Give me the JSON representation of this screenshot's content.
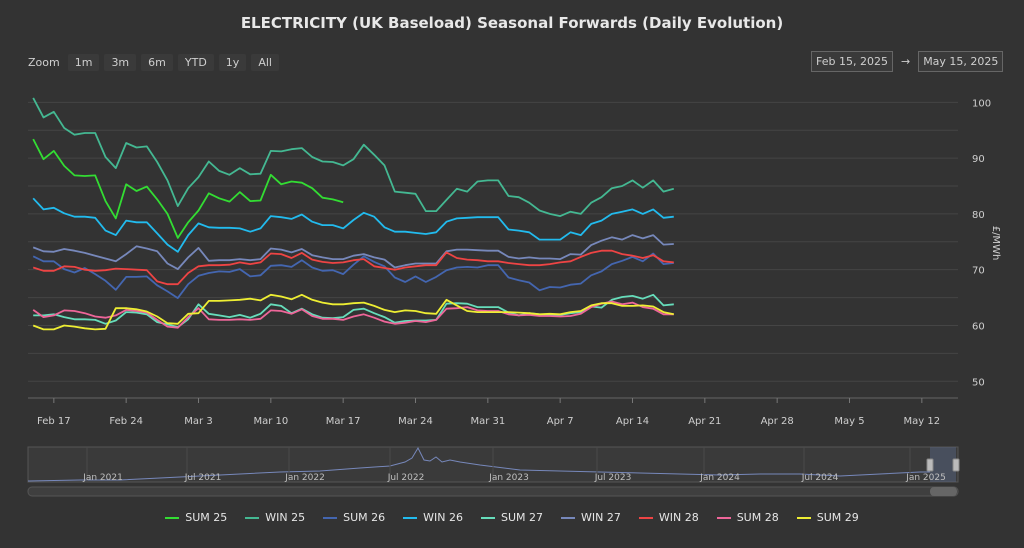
{
  "title": "ELECTRICITY (UK Baseload) Seasonal Forwards (Daily Evolution)",
  "zoom": {
    "label": "Zoom",
    "buttons": [
      "1m",
      "3m",
      "6m",
      "YTD",
      "1y",
      "All"
    ]
  },
  "range": {
    "from": "Feb 15, 2025",
    "arrow": "→",
    "to": "May 15, 2025"
  },
  "yaxis": {
    "label": "£/MWh",
    "ticks": [
      50,
      60,
      70,
      80,
      90,
      100
    ]
  },
  "xaxis": {
    "ticks": [
      "Feb 17",
      "Feb 24",
      "Mar 3",
      "Mar 10",
      "Mar 17",
      "Mar 24",
      "Mar 31",
      "Apr 7",
      "Apr 14",
      "Apr 21",
      "Apr 28",
      "May 5",
      "May 12"
    ]
  },
  "navigator": {
    "labels": [
      "Jan 2021",
      "Jul 2021",
      "Jan 2022",
      "Jul 2022",
      "Jan 2023",
      "Jul 2023",
      "Jan 2024",
      "Jul 2024",
      "Jan 2025"
    ]
  },
  "chart_data": {
    "type": "line",
    "title": "ELECTRICITY (UK Baseload) Seasonal Forwards (Daily Evolution)",
    "ylabel": "£/MWh",
    "ylim": [
      47,
      104
    ],
    "x": [
      "Feb 15",
      "Feb 16",
      "Feb 17",
      "Feb 18",
      "Feb 19",
      "Feb 20",
      "Feb 21",
      "Feb 22",
      "Feb 23",
      "Feb 24",
      "Feb 25",
      "Feb 26",
      "Feb 27",
      "Feb 28",
      "Mar 1",
      "Mar 2",
      "Mar 3",
      "Mar 4",
      "Mar 5",
      "Mar 6",
      "Mar 7",
      "Mar 8",
      "Mar 9",
      "Mar 10",
      "Mar 11",
      "Mar 12",
      "Mar 13",
      "Mar 14",
      "Mar 15",
      "Mar 16",
      "Mar 17",
      "Mar 18",
      "Mar 19",
      "Mar 20",
      "Mar 21",
      "Mar 22",
      "Mar 23",
      "Mar 24",
      "Mar 25",
      "Mar 26",
      "Mar 27",
      "Mar 28",
      "Mar 29",
      "Mar 30",
      "Mar 31",
      "Apr 1",
      "Apr 2",
      "Apr 3",
      "Apr 4",
      "Apr 5",
      "Apr 6",
      "Apr 7",
      "Apr 8",
      "Apr 9",
      "Apr 10",
      "Apr 11",
      "Apr 12",
      "Apr 13",
      "Apr 14",
      "Apr 15",
      "Apr 16",
      "Apr 17",
      "Apr 18",
      "Apr 19",
      "Apr 20",
      "Apr 21",
      "Apr 22",
      "Apr 23",
      "Apr 24",
      "Apr 25",
      "Apr 26",
      "Apr 27",
      "Apr 28",
      "Apr 29",
      "Apr 30",
      "May 1",
      "May 2",
      "May 3",
      "May 4",
      "May 5",
      "May 6",
      "May 7",
      "May 8",
      "May 9",
      "May 10",
      "May 11",
      "May 12",
      "May 13",
      "May 14",
      "May 15"
    ],
    "series": [
      {
        "name": "SUM 25",
        "color": "#33dd33",
        "values": [
          93.4,
          89.8,
          91.3,
          88.6,
          86.9,
          86.8,
          86.9,
          82.3,
          79.2,
          85.3,
          84.1,
          84.9,
          82.6,
          80.0,
          75.7,
          78.5,
          80.6,
          83.7,
          82.8,
          82.2,
          83.9,
          82.3,
          82.4,
          87.0,
          85.3,
          85.8,
          85.6,
          84.6,
          82.9,
          82.6,
          82.1,
          null,
          null,
          null,
          null,
          null,
          null,
          null,
          null,
          null,
          null,
          null,
          null,
          null,
          null,
          null,
          null,
          null,
          null,
          null,
          null,
          null,
          null,
          null,
          null,
          null,
          null,
          null,
          null,
          null,
          null,
          null,
          null,
          null,
          null,
          null,
          null,
          null,
          null,
          null,
          null,
          null,
          null,
          null,
          null,
          null,
          null,
          null,
          null,
          null,
          null,
          null,
          null,
          null,
          null,
          null,
          null,
          null,
          null,
          null
        ]
      },
      {
        "name": "WIN 25",
        "color": "#44b892",
        "values": [
          100.8,
          97.3,
          98.3,
          95.4,
          94.2,
          94.5,
          94.5,
          90.2,
          88.2,
          92.7,
          91.9,
          92.1,
          89.3,
          86.0,
          81.4,
          84.6,
          86.6,
          89.4,
          87.7,
          87.0,
          88.2,
          87.1,
          87.2,
          91.3,
          91.2,
          91.6,
          91.8,
          90.2,
          89.4,
          89.3,
          88.7,
          89.8,
          92.4,
          90.6,
          88.7,
          84.0,
          83.8,
          83.6,
          80.5,
          80.5,
          82.5,
          84.5,
          84.0,
          85.8,
          86.0,
          86.0,
          83.2,
          83.0,
          82.0,
          80.6,
          80.0,
          79.6,
          80.4,
          80.0,
          82.0,
          83.0,
          84.6,
          85.0,
          86.0,
          84.7,
          86.0,
          84.0,
          84.5,
          null,
          null,
          null,
          null,
          null,
          null,
          null,
          null,
          null,
          null,
          null,
          null,
          null,
          null,
          null,
          null,
          null,
          null,
          null,
          null,
          null,
          null,
          null,
          null,
          null,
          null,
          null
        ]
      },
      {
        "name": "SUM 26",
        "color": "#4466b0",
        "values": [
          72.4,
          71.5,
          71.5,
          70.1,
          69.5,
          70.3,
          69.2,
          68.0,
          66.4,
          68.7,
          68.7,
          68.8,
          67.2,
          66.1,
          64.9,
          67.4,
          68.9,
          69.4,
          69.7,
          69.6,
          70.1,
          68.8,
          69.0,
          70.7,
          70.8,
          70.5,
          71.7,
          70.4,
          69.8,
          69.9,
          69.2,
          70.9,
          72.4,
          71.4,
          70.6,
          68.6,
          67.8,
          68.8,
          67.8,
          68.7,
          69.9,
          70.4,
          70.5,
          70.4,
          70.8,
          70.8,
          68.6,
          68.1,
          67.7,
          66.3,
          66.9,
          66.8,
          67.3,
          67.5,
          69.0,
          69.7,
          71.0,
          71.6,
          72.3,
          71.5,
          72.9,
          71.0,
          71.2,
          null,
          null,
          null,
          null,
          null,
          null,
          null,
          null,
          null,
          null,
          null,
          null,
          null,
          null,
          null,
          null,
          null,
          null,
          null,
          null,
          null,
          null,
          null,
          null,
          null,
          null,
          null
        ]
      },
      {
        "name": "WIN 26",
        "color": "#22bbee",
        "values": [
          82.8,
          80.8,
          81.1,
          80.1,
          79.5,
          79.5,
          79.3,
          77.0,
          76.2,
          78.8,
          78.5,
          78.5,
          76.5,
          74.5,
          73.2,
          76.2,
          78.3,
          77.6,
          77.5,
          77.5,
          77.4,
          76.8,
          77.4,
          79.6,
          79.4,
          79.1,
          79.9,
          78.6,
          78.0,
          78.0,
          77.4,
          78.9,
          80.2,
          79.5,
          77.6,
          76.8,
          76.8,
          76.6,
          76.4,
          76.7,
          78.6,
          79.2,
          79.3,
          79.4,
          79.4,
          79.4,
          77.2,
          77.0,
          76.7,
          75.4,
          75.4,
          75.4,
          76.7,
          76.2,
          78.2,
          78.8,
          80.0,
          80.4,
          80.8,
          80.0,
          80.8,
          79.3,
          79.5,
          null,
          null,
          null,
          null,
          null,
          null,
          null,
          null,
          null,
          null,
          null,
          null,
          null,
          null,
          null,
          null,
          null,
          null,
          null,
          null,
          null,
          null,
          null,
          null,
          null,
          null,
          null
        ]
      },
      {
        "name": "SUM 27",
        "color": "#66ddbb",
        "values": [
          61.8,
          61.8,
          62.0,
          61.5,
          61.1,
          61.1,
          61.0,
          60.3,
          60.9,
          62.4,
          62.3,
          62.0,
          60.6,
          60.2,
          59.7,
          61.1,
          63.8,
          62.1,
          61.8,
          61.5,
          61.9,
          61.4,
          62.1,
          63.8,
          63.5,
          62.2,
          63.0,
          62.0,
          61.4,
          61.3,
          61.5,
          62.8,
          63.0,
          62.2,
          61.5,
          60.5,
          60.8,
          60.9,
          60.9,
          61.0,
          63.9,
          64.0,
          63.9,
          63.3,
          63.3,
          63.3,
          62.3,
          61.8,
          62.2,
          62.0,
          61.9,
          61.9,
          62.2,
          62.4,
          63.4,
          63.2,
          64.6,
          65.1,
          65.3,
          64.8,
          65.5,
          63.6,
          63.8,
          null,
          null,
          null,
          null,
          null,
          null,
          null,
          null,
          null,
          null,
          null,
          null,
          null,
          null,
          null,
          null,
          null,
          null,
          null,
          null,
          null,
          null,
          null,
          null,
          null,
          null,
          null
        ]
      },
      {
        "name": "WIN 27",
        "color": "#7788bb",
        "values": [
          74.0,
          73.3,
          73.2,
          73.7,
          73.4,
          73.0,
          72.5,
          72.0,
          71.5,
          72.8,
          74.2,
          73.8,
          73.3,
          71.1,
          70.1,
          72.2,
          73.9,
          71.6,
          71.7,
          71.7,
          71.9,
          71.7,
          71.9,
          73.8,
          73.6,
          73.1,
          73.7,
          72.6,
          72.2,
          71.9,
          71.9,
          72.5,
          72.8,
          72.2,
          71.8,
          70.4,
          70.8,
          71.1,
          71.1,
          71.1,
          73.3,
          73.6,
          73.6,
          73.5,
          73.4,
          73.4,
          72.3,
          72.0,
          72.2,
          72.0,
          72.0,
          71.9,
          72.8,
          72.7,
          74.4,
          75.2,
          75.8,
          75.4,
          76.2,
          75.6,
          76.2,
          74.5,
          74.6,
          null,
          null,
          null,
          null,
          null,
          null,
          null,
          null,
          null,
          null,
          null,
          null,
          null,
          null,
          null,
          null,
          null,
          null,
          null,
          null,
          null,
          null,
          null,
          null,
          null,
          null,
          null
        ]
      },
      {
        "name": "WIN 28",
        "color": "#ee4444",
        "values": [
          70.4,
          69.8,
          69.8,
          70.6,
          70.5,
          70.0,
          69.8,
          69.9,
          70.2,
          70.1,
          70.0,
          69.9,
          67.9,
          67.4,
          67.4,
          69.4,
          70.6,
          70.8,
          70.8,
          70.9,
          71.3,
          71.0,
          71.3,
          72.9,
          72.8,
          72.1,
          73.0,
          71.8,
          71.4,
          71.2,
          71.3,
          71.7,
          71.9,
          70.6,
          70.3,
          70.0,
          70.4,
          70.6,
          70.8,
          70.8,
          73.1,
          72.1,
          71.8,
          71.7,
          71.5,
          71.5,
          71.2,
          71.0,
          70.8,
          70.8,
          71.0,
          71.3,
          71.5,
          72.3,
          73.0,
          73.4,
          73.4,
          72.8,
          72.5,
          72.1,
          72.6,
          71.5,
          71.3,
          null,
          null,
          null,
          null,
          null,
          null,
          null,
          null,
          null,
          null,
          null,
          null,
          null,
          null,
          null,
          null,
          null,
          null,
          null,
          null,
          null,
          null,
          null,
          null,
          null,
          null,
          null
        ]
      },
      {
        "name": "SUM 28",
        "color": "#ee6699",
        "values": [
          62.8,
          61.5,
          61.8,
          62.7,
          62.6,
          62.2,
          61.6,
          61.4,
          61.8,
          62.8,
          62.6,
          62.3,
          61.0,
          59.8,
          59.6,
          61.5,
          63.1,
          61.1,
          61.0,
          61.0,
          61.1,
          61.0,
          61.2,
          62.7,
          62.6,
          62.1,
          62.9,
          61.7,
          61.2,
          61.2,
          61.0,
          61.6,
          62.0,
          61.4,
          60.7,
          60.3,
          60.5,
          60.8,
          60.6,
          61.0,
          63.0,
          63.1,
          63.3,
          62.7,
          62.6,
          62.6,
          62.0,
          61.8,
          61.9,
          61.7,
          61.7,
          61.6,
          61.7,
          62.1,
          63.3,
          63.9,
          64.3,
          63.8,
          64.1,
          63.3,
          63.0,
          62.0,
          62.0,
          null,
          null,
          null,
          null,
          null,
          null,
          null,
          null,
          null,
          null,
          null,
          null,
          null,
          null,
          null,
          null,
          null,
          null,
          null,
          null,
          null,
          null,
          null,
          null,
          null,
          null,
          null
        ]
      },
      {
        "name": "SUM 29",
        "color": "#eeee33",
        "values": [
          60.0,
          59.3,
          59.3,
          60.0,
          59.8,
          59.5,
          59.3,
          59.4,
          63.1,
          63.1,
          62.9,
          62.5,
          61.6,
          60.4,
          60.3,
          62.1,
          62.2,
          64.4,
          64.4,
          64.5,
          64.6,
          64.8,
          64.5,
          65.5,
          65.2,
          64.7,
          65.5,
          64.6,
          64.1,
          63.8,
          63.8,
          64.0,
          64.1,
          63.5,
          62.8,
          62.4,
          62.7,
          62.6,
          62.2,
          62.1,
          64.6,
          63.6,
          62.6,
          62.4,
          62.4,
          62.4,
          62.4,
          62.3,
          62.2,
          62.0,
          62.1,
          62.0,
          62.4,
          62.6,
          63.6,
          64.0,
          64.0,
          63.5,
          63.5,
          63.6,
          63.4,
          62.4,
          62.0,
          null,
          null,
          null,
          null,
          null,
          null,
          null,
          null,
          null,
          null,
          null,
          null,
          null,
          null,
          null,
          null,
          null,
          null,
          null,
          null,
          null,
          null,
          null,
          null,
          null,
          null,
          null
        ]
      }
    ]
  }
}
